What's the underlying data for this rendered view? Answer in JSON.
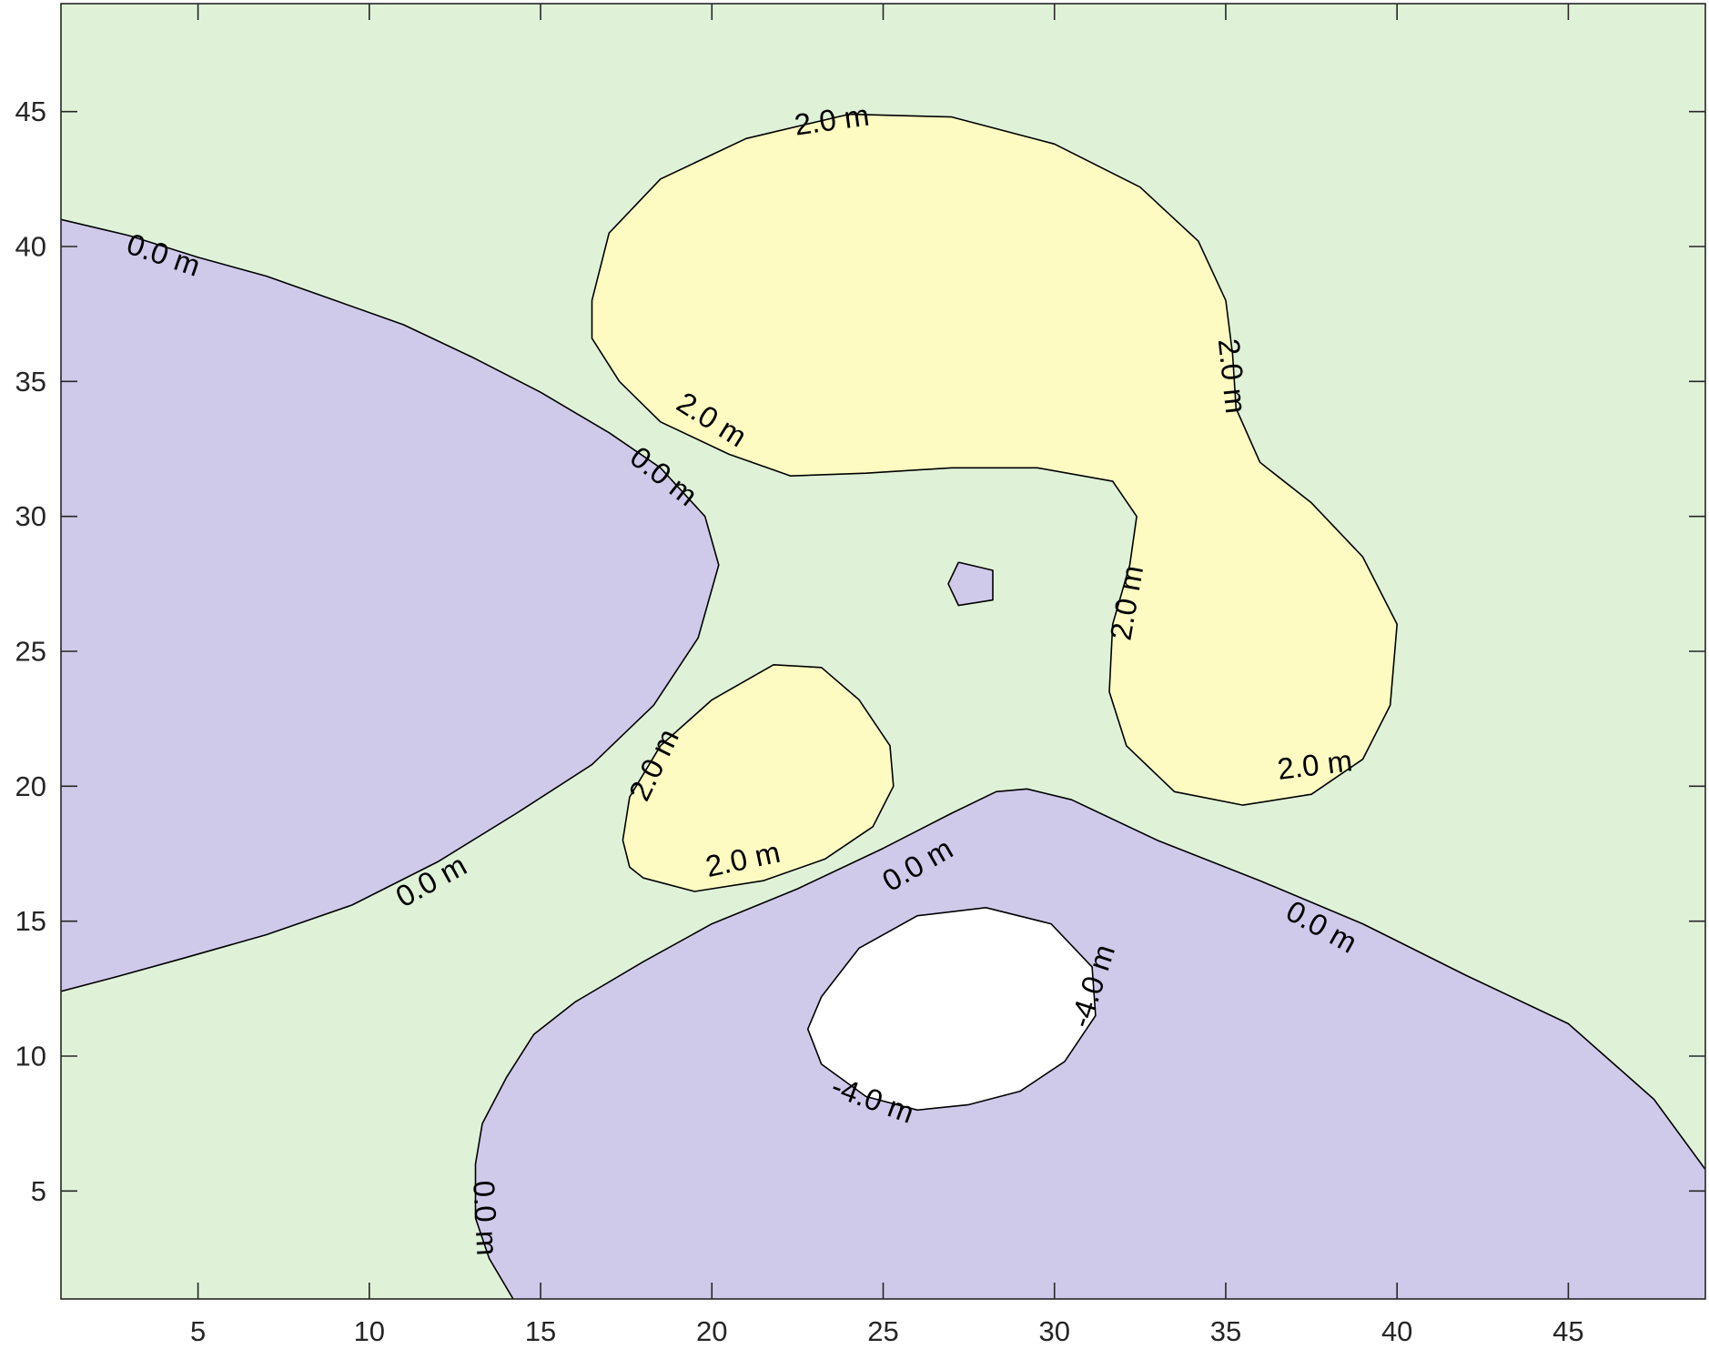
{
  "chart_data": {
    "type": "contour",
    "title": "",
    "xlabel": "",
    "ylabel": "",
    "xlim": [
      1,
      49
    ],
    "ylim": [
      1,
      49
    ],
    "x_ticks": [
      5,
      10,
      15,
      20,
      25,
      30,
      35,
      40,
      45
    ],
    "y_ticks": [
      5,
      10,
      15,
      20,
      25,
      30,
      35,
      40,
      45
    ],
    "grid": false,
    "levels": [
      -4.0,
      0.0,
      2.0
    ],
    "level_unit": "m",
    "colors": {
      "background_fill": "#dff2d8",
      "below_0_fill": "#cfcaea",
      "above_2_fill": "#fdfbc2",
      "below_-4_fill": "#ffffff",
      "contour_line": "#000000"
    },
    "regions": [
      {
        "name": "left-lobe",
        "fill": "below_0_fill",
        "level": 0.0,
        "points": [
          [
            1,
            41
          ],
          [
            3,
            40.4
          ],
          [
            5,
            39.6
          ],
          [
            7,
            38.9
          ],
          [
            9,
            38
          ],
          [
            11,
            37.1
          ],
          [
            13,
            35.9
          ],
          [
            15,
            34.6
          ],
          [
            17,
            33.1
          ],
          [
            18.5,
            31.8
          ],
          [
            19.8,
            30
          ],
          [
            20.2,
            28.2
          ],
          [
            19.6,
            25.5
          ],
          [
            18.3,
            23
          ],
          [
            16.5,
            20.8
          ],
          [
            14.3,
            19
          ],
          [
            12,
            17.2
          ],
          [
            9.5,
            15.6
          ],
          [
            7,
            14.5
          ],
          [
            4.5,
            13.6
          ],
          [
            2.5,
            12.9
          ],
          [
            1,
            12.4
          ]
        ]
      },
      {
        "name": "bottom-lobe",
        "fill": "below_0_fill",
        "level": 0.0,
        "points": [
          [
            14.2,
            1
          ],
          [
            13.5,
            2.5
          ],
          [
            13.1,
            4
          ],
          [
            13.1,
            6
          ],
          [
            13.3,
            7.5
          ],
          [
            14,
            9.2
          ],
          [
            14.8,
            10.8
          ],
          [
            16,
            12
          ],
          [
            18,
            13.5
          ],
          [
            20,
            14.9
          ],
          [
            22.5,
            16.2
          ],
          [
            25,
            17.7
          ],
          [
            27,
            19
          ],
          [
            28.3,
            19.8
          ],
          [
            29.2,
            19.9
          ],
          [
            30.5,
            19.5
          ],
          [
            33,
            18
          ],
          [
            36,
            16.5
          ],
          [
            39,
            14.9
          ],
          [
            42,
            13
          ],
          [
            45,
            11.2
          ],
          [
            47.5,
            8.4
          ],
          [
            49,
            5.8
          ],
          [
            49,
            1
          ]
        ]
      },
      {
        "name": "top-right-bulb",
        "fill": "above_2_fill",
        "level": 2.0,
        "points": [
          [
            16.5,
            38
          ],
          [
            17,
            40.5
          ],
          [
            18.5,
            42.5
          ],
          [
            21,
            44
          ],
          [
            24,
            44.9
          ],
          [
            27,
            44.8
          ],
          [
            30,
            43.8
          ],
          [
            32.5,
            42.2
          ],
          [
            34.2,
            40.2
          ],
          [
            35,
            38
          ],
          [
            35.2,
            36
          ],
          [
            35.3,
            34
          ],
          [
            36,
            32
          ],
          [
            37.5,
            30.5
          ],
          [
            39,
            28.5
          ],
          [
            40,
            26
          ],
          [
            39.8,
            23
          ],
          [
            39,
            21
          ],
          [
            37.5,
            19.7
          ],
          [
            35.5,
            19.3
          ],
          [
            33.5,
            19.8
          ],
          [
            32.1,
            21.5
          ],
          [
            31.6,
            23.5
          ],
          [
            31.7,
            26
          ],
          [
            32.2,
            28.2
          ],
          [
            32.4,
            30
          ],
          [
            31.7,
            31.3
          ],
          [
            29.5,
            31.8
          ],
          [
            27,
            31.8
          ],
          [
            24.5,
            31.6
          ],
          [
            22.3,
            31.5
          ],
          [
            20.5,
            32.3
          ],
          [
            18.5,
            33.5
          ],
          [
            17.3,
            35
          ],
          [
            16.5,
            36.6
          ]
        ]
      },
      {
        "name": "small-mid-bulb",
        "fill": "above_2_fill",
        "level": 2.0,
        "points": [
          [
            17.4,
            18
          ],
          [
            17.6,
            19.6
          ],
          [
            18.5,
            21.5
          ],
          [
            20,
            23.2
          ],
          [
            21.8,
            24.5
          ],
          [
            23.2,
            24.4
          ],
          [
            24.3,
            23.2
          ],
          [
            25.2,
            21.5
          ],
          [
            25.3,
            20
          ],
          [
            24.7,
            18.5
          ],
          [
            23.3,
            17.3
          ],
          [
            21.5,
            16.5
          ],
          [
            19.5,
            16.1
          ],
          [
            18,
            16.6
          ],
          [
            17.6,
            17
          ]
        ]
      },
      {
        "name": "center-island",
        "fill": "below_0_fill",
        "level": 0.0,
        "points": [
          [
            27.2,
            28.3
          ],
          [
            28.2,
            28
          ],
          [
            28.2,
            26.9
          ],
          [
            27.2,
            26.7
          ],
          [
            26.9,
            27.5
          ]
        ]
      },
      {
        "name": "deep-hole",
        "fill": "below_-4_fill",
        "level": -4.0,
        "points": [
          [
            23.2,
            9.7
          ],
          [
            24.5,
            8.5
          ],
          [
            26,
            8
          ],
          [
            27.5,
            8.2
          ],
          [
            29,
            8.7
          ],
          [
            30.3,
            9.8
          ],
          [
            31.2,
            11.5
          ],
          [
            31.1,
            13.3
          ],
          [
            29.9,
            14.9
          ],
          [
            28,
            15.5
          ],
          [
            26,
            15.2
          ],
          [
            24.3,
            14
          ],
          [
            23.2,
            12.2
          ],
          [
            22.8,
            11
          ]
        ]
      }
    ],
    "labels": [
      {
        "text": "0.0 m",
        "x": 4,
        "y": 39.7,
        "angle": 19
      },
      {
        "text": "0.0 m",
        "x": 18.6,
        "y": 31.5,
        "angle": 38
      },
      {
        "text": "0.0 m",
        "x": 11.8,
        "y": 16.5,
        "angle": -29
      },
      {
        "text": "0.0 m",
        "x": 13.4,
        "y": 4,
        "angle": 87
      },
      {
        "text": "0.0 m",
        "x": 26,
        "y": 17.1,
        "angle": -30
      },
      {
        "text": "0.0 m",
        "x": 37.8,
        "y": 14.8,
        "angle": 29
      },
      {
        "text": "2.0 m",
        "x": 23.5,
        "y": 44.7,
        "angle": -8
      },
      {
        "text": "2.0 m",
        "x": 20,
        "y": 33.6,
        "angle": 32
      },
      {
        "text": "2.0 m",
        "x": 35.2,
        "y": 35.2,
        "angle": 84
      },
      {
        "text": "2.0 m",
        "x": 32.1,
        "y": 26.8,
        "angle": -80
      },
      {
        "text": "2.0 m",
        "x": 37.6,
        "y": 20.8,
        "angle": -7
      },
      {
        "text": "2.0 m",
        "x": 18.3,
        "y": 20.8,
        "angle": -64
      },
      {
        "text": "2.0 m",
        "x": 20.9,
        "y": 17.3,
        "angle": -12
      },
      {
        "text": "-4.0 m",
        "x": 31.1,
        "y": 12.6,
        "angle": -72
      },
      {
        "text": "-4.0 m",
        "x": 24.7,
        "y": 8.4,
        "angle": 20
      }
    ]
  }
}
